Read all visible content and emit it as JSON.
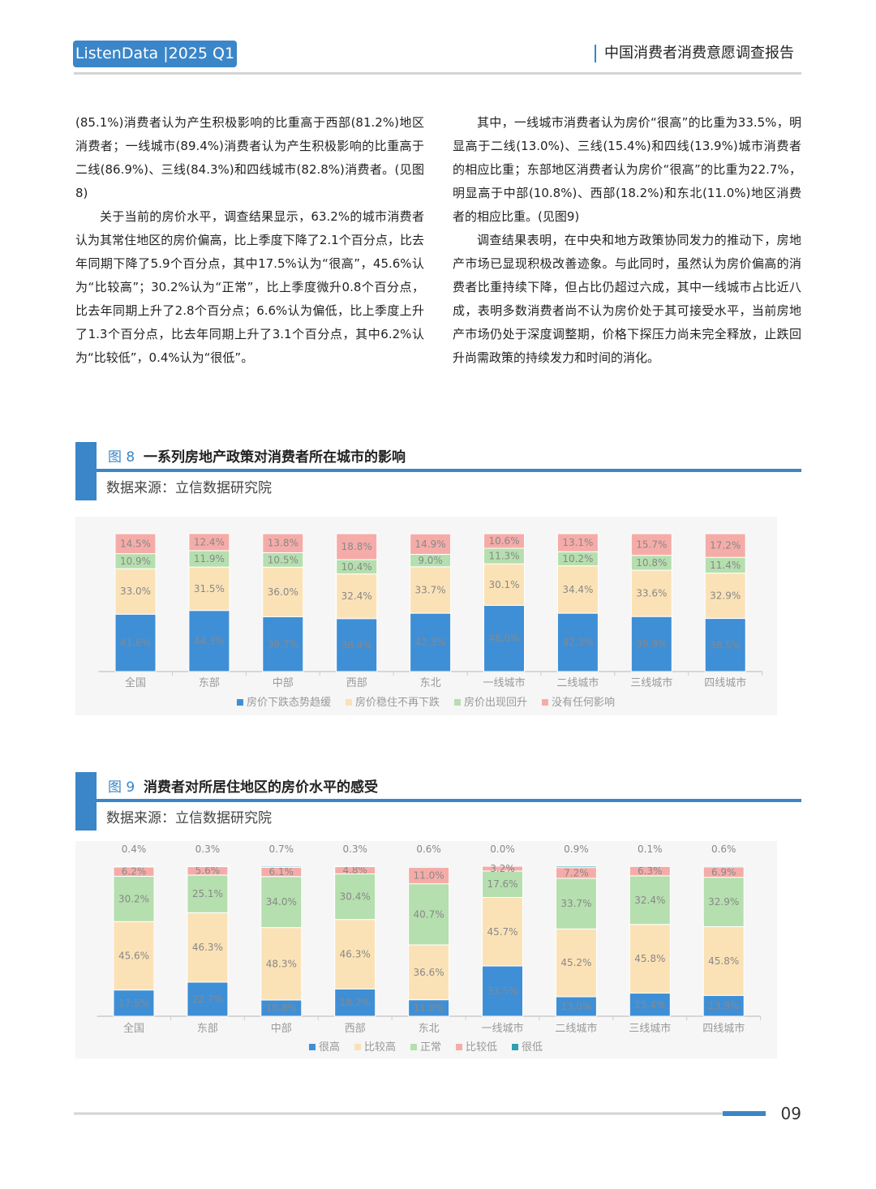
{
  "header": {
    "badge": "ListenData |2025 Q1",
    "report_title": "中国消费者消费意愿调查报告"
  },
  "text": {
    "left": [
      "(85.1%)消费者认为产生积极影响的比重高于西部(81.2%)地区消费者；一线城市(89.4%)消费者认为产生积极影响的比重高于二线(86.9%)、三线(84.3%)和四线城市(82.8%)消费者。(见图8)",
      "关于当前的房价水平，调查结果显示，63.2%的城市消费者认为其常住地区的房价偏高，比上季度下降了2.1个百分点，比去年同期下降了5.9个百分点，其中17.5%认为“很高”，45.6%认为“比较高”；30.2%认为“正常”，比上季度微升0.8个百分点，比去年同期上升了2.8个百分点；6.6%认为偏低，比上季度上升了1.3个百分点，比去年同期上升了3.1个百分点，其中6.2%认为“比较低”，0.4%认为“很低”。"
    ],
    "right": [
      "其中，一线城市消费者认为房价“很高”的比重为33.5%，明显高于二线(13.0%)、三线(15.4%)和四线(13.9%)城市消费者的相应比重；东部地区消费者认为房价“很高”的比重为22.7%，明显高于中部(10.8%)、西部(18.2%)和东北(11.0%)地区消费者的相应比重。(见图9)",
      "调查结果表明，在中央和地方政策协同发力的推动下，房地产市场已显现积极改善迹象。与此同时，虽然认为房价偏高的消费者比重持续下降，但占比仍超过六成，其中一线城市占比近八成，表明多数消费者尚不认为房价处于其可接受水平，当前房地产市场仍处于深度调整期，价格下探压力尚未完全释放，止跌回升尚需政策的持续发力和时间的消化。"
    ]
  },
  "chart_data": [
    {
      "type": "stacked_bar",
      "figure_label": "图 8",
      "title": "一系列房地产政策对消费者所在城市的影响",
      "source": "数据来源：立信数据研究院",
      "categories": [
        "全国",
        "东部",
        "中部",
        "西部",
        "东北",
        "一线城市",
        "二线城市",
        "三线城市",
        "四线城市"
      ],
      "series": [
        {
          "name": "房价下跌态势趋缓",
          "color": "#3f8fd6",
          "values": [
            41.6,
            44.3,
            39.7,
            38.4,
            42.3,
            48.0,
            42.3,
            39.9,
            38.5
          ],
          "value_labels": [
            "41.6%",
            "44.3%",
            "39.7%",
            "38.4%",
            "42.3%",
            "48.0%",
            "42.3%",
            "39.9%",
            "38.5%"
          ]
        },
        {
          "name": "房价稳住不再下跌",
          "color": "#fbe2b6",
          "values": [
            33.0,
            31.5,
            36.0,
            32.4,
            33.7,
            30.1,
            34.4,
            33.6,
            32.9
          ],
          "value_labels": [
            "33.0%",
            "31.5%",
            "36.0%",
            "32.4%",
            "33.7%",
            "30.1%",
            "34.4%",
            "33.6%",
            "32.9%"
          ]
        },
        {
          "name": "房价出现回升",
          "color": "#b5dfae",
          "values": [
            10.9,
            11.9,
            10.5,
            10.4,
            9.0,
            11.3,
            10.2,
            10.8,
            11.4
          ],
          "value_labels": [
            "10.9%",
            "11.9%",
            "10.5%",
            "10.4%",
            "9.0%",
            "11.3%",
            "10.2%",
            "10.8%",
            "11.4%"
          ]
        },
        {
          "name": "没有任何影响",
          "color": "#f5aca8",
          "values": [
            14.5,
            12.4,
            13.8,
            18.8,
            14.9,
            10.6,
            13.1,
            15.7,
            17.2
          ],
          "value_labels": [
            "14.5%",
            "12.4%",
            "13.8%",
            "18.8%",
            "14.9%",
            "10.6%",
            "13.1%",
            "15.7%",
            "17.2%"
          ]
        }
      ]
    },
    {
      "type": "stacked_bar",
      "figure_label": "图 9",
      "title": "消费者对所居住地区的房价水平的感受",
      "source": "数据来源：立信数据研究院",
      "categories": [
        "全国",
        "东部",
        "中部",
        "西部",
        "东北",
        "一线城市",
        "二线城市",
        "三线城市",
        "四线城市"
      ],
      "series": [
        {
          "name": "很高",
          "color": "#3f8fd6",
          "values": [
            17.5,
            22.7,
            10.8,
            18.2,
            11.0,
            33.5,
            13.0,
            15.4,
            13.9
          ],
          "value_labels": [
            "17.5%",
            "22.7%",
            "10.8%",
            "18.2%",
            "11.0%",
            "33.5%",
            "13.0%",
            "15.4%",
            "13.9%"
          ]
        },
        {
          "name": "比较高",
          "color": "#fbe2b6",
          "values": [
            45.6,
            46.3,
            48.3,
            46.3,
            36.6,
            45.7,
            45.2,
            45.8,
            45.8
          ],
          "value_labels": [
            "45.6%",
            "46.3%",
            "48.3%",
            "46.3%",
            "36.6%",
            "45.7%",
            "45.2%",
            "45.8%",
            "45.8%"
          ]
        },
        {
          "name": "正常",
          "color": "#b5dfae",
          "values": [
            30.2,
            25.1,
            34.0,
            30.4,
            40.7,
            17.6,
            33.7,
            32.4,
            32.9
          ],
          "value_labels": [
            "30.2%",
            "25.1%",
            "34.0%",
            "30.4%",
            "40.7%",
            "17.6%",
            "33.7%",
            "32.4%",
            "32.9%"
          ]
        },
        {
          "name": "比较低",
          "color": "#f5aca8",
          "values": [
            6.2,
            5.6,
            6.1,
            4.8,
            11.0,
            3.2,
            7.2,
            6.3,
            6.9
          ],
          "value_labels": [
            "6.2%",
            "5.6%",
            "6.1%",
            "4.8%",
            "11.0%",
            "3.2%",
            "7.2%",
            "6.3%",
            "6.9%"
          ]
        },
        {
          "name": "很低",
          "color": "#2f9fb2",
          "values": [
            0.4,
            0.3,
            0.7,
            0.3,
            0.6,
            0.0,
            0.9,
            0.1,
            0.6
          ],
          "value_labels": [
            "0.4%",
            "0.3%",
            "0.7%",
            "0.3%",
            "0.6%",
            "0.0%",
            "0.9%",
            "0.1%",
            "0.6%"
          ]
        }
      ]
    }
  ],
  "footer": {
    "page": "09"
  }
}
